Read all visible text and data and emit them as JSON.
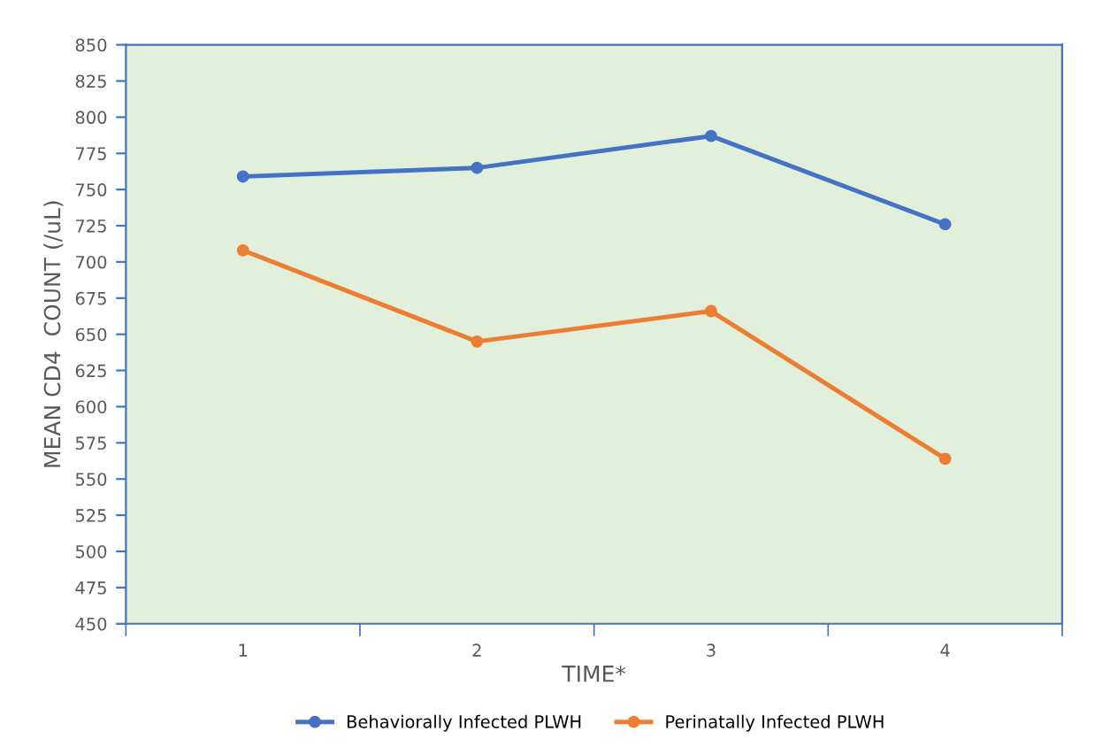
{
  "chart_data": {
    "type": "line",
    "xlabel": "TIME*",
    "ylabel": "MEAN CD4  COUNT (/uL)",
    "categories": [
      "1",
      "2",
      "3",
      "4"
    ],
    "series": [
      {
        "name": "Behaviorally Infected PLWH",
        "color": "#4472c4",
        "values": [
          759,
          765,
          787,
          726
        ]
      },
      {
        "name": "Perinatally Infected PLWH",
        "color": "#ed7d31",
        "values": [
          708,
          645,
          666,
          564
        ]
      }
    ],
    "ylim": [
      450,
      850
    ],
    "yticks": [
      450,
      475,
      500,
      525,
      550,
      575,
      600,
      625,
      650,
      675,
      700,
      725,
      750,
      775,
      800,
      825,
      850
    ],
    "marker": "circle",
    "line_style": "solid",
    "legend": "bottom",
    "grid": false
  }
}
